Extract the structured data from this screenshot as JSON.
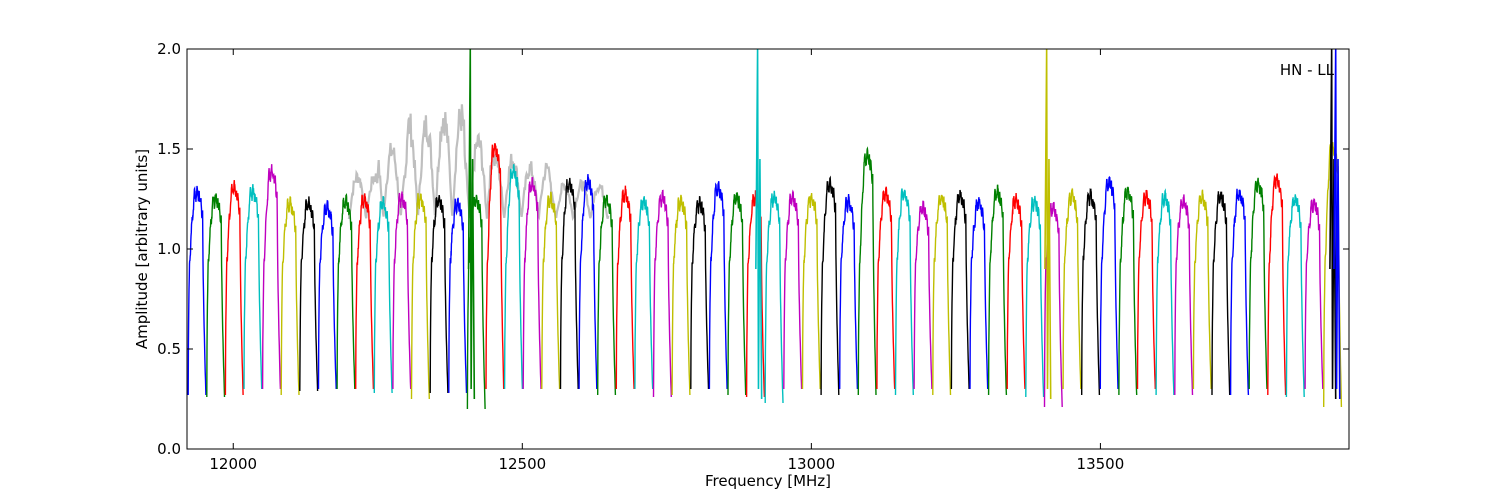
{
  "chart_data": {
    "type": "line",
    "title": "",
    "xlabel": "Frequency [MHz]",
    "ylabel": "Amplitude [arbitrary units]",
    "xlim": [
      11920,
      13930
    ],
    "ylim": [
      0.0,
      2.0
    ],
    "xticks": [
      12000,
      12500,
      13000,
      13500
    ],
    "yticks": [
      0.0,
      0.5,
      1.0,
      1.5,
      2.0
    ],
    "xtick_labels": [
      "12000",
      "12500",
      "13000",
      "13500"
    ],
    "ytick_labels": [
      "0.0",
      "0.5",
      "1.0",
      "1.5",
      "2.0"
    ],
    "annotation": "HN - LL",
    "annotation_position": "top-right",
    "grid": false,
    "legend": "none",
    "channel_width_mhz": 32.2,
    "channel_start_mhz": 11922,
    "channel_count": 62,
    "color_cycle": [
      "#0000ff",
      "#008000",
      "#ff0000",
      "#00bfbf",
      "#bf00bf",
      "#bfbf00",
      "#000000"
    ],
    "background_trace_color": "#bfbfbf",
    "background_trace_range": [
      12200,
      12650
    ],
    "background_trace_peak_levels": [
      1.4,
      1.55,
      1.7,
      1.75,
      1.6,
      1.5,
      1.45,
      1.35,
      1.35
    ],
    "channel_peak_levels": [
      1.28,
      1.25,
      1.3,
      1.28,
      1.38,
      1.22,
      1.22,
      1.2,
      1.23,
      1.24,
      1.22,
      1.25,
      1.25,
      1.24,
      1.22,
      1.24,
      1.5,
      1.38,
      1.32,
      1.24,
      1.32,
      1.33,
      1.24,
      1.27,
      1.23,
      1.25,
      1.23,
      1.22,
      1.3,
      1.25,
      1.25,
      1.25,
      1.25,
      1.25,
      1.32,
      1.23,
      1.46,
      1.27,
      1.27,
      1.2,
      1.25,
      1.26,
      1.22,
      1.28,
      1.24,
      1.23,
      1.2,
      1.26,
      1.26,
      1.33,
      1.28,
      1.26,
      1.25,
      1.23,
      1.25,
      1.26,
      1.27,
      1.32,
      1.34,
      1.24,
      1.22,
      1.5
    ],
    "channel_trough_levels": [
      0.27,
      0.26,
      0.27,
      0.3,
      0.3,
      0.27,
      0.29,
      0.3,
      0.3,
      0.3,
      0.28,
      0.3,
      0.25,
      0.28,
      0.28,
      0.2,
      0.3,
      0.3,
      0.3,
      0.3,
      0.3,
      0.3,
      0.27,
      0.3,
      0.3,
      0.26,
      0.27,
      0.3,
      0.3,
      0.27,
      0.26,
      0.23,
      0.3,
      0.3,
      0.27,
      0.3,
      0.27,
      0.3,
      0.27,
      0.3,
      0.27,
      0.3,
      0.3,
      0.27,
      0.3,
      0.26,
      0.21,
      0.3,
      0.27,
      0.3,
      0.27,
      0.3,
      0.27,
      0.27,
      0.3,
      0.27,
      0.27,
      0.3,
      0.27,
      0.26,
      0.3,
      0.21
    ],
    "spikes": [
      {
        "x": 12410,
        "y_max": 2.0,
        "color": "#008000"
      },
      {
        "x": 12907,
        "y_max": 2.0,
        "color": "#00bfbf"
      },
      {
        "x": 13407,
        "y_max": 2.0,
        "color": "#bfbf00"
      },
      {
        "x": 13900,
        "y_max": 2.0,
        "color": "#000000"
      },
      {
        "x": 13907,
        "y_max": 2.0,
        "color": "#0000ff"
      }
    ]
  }
}
